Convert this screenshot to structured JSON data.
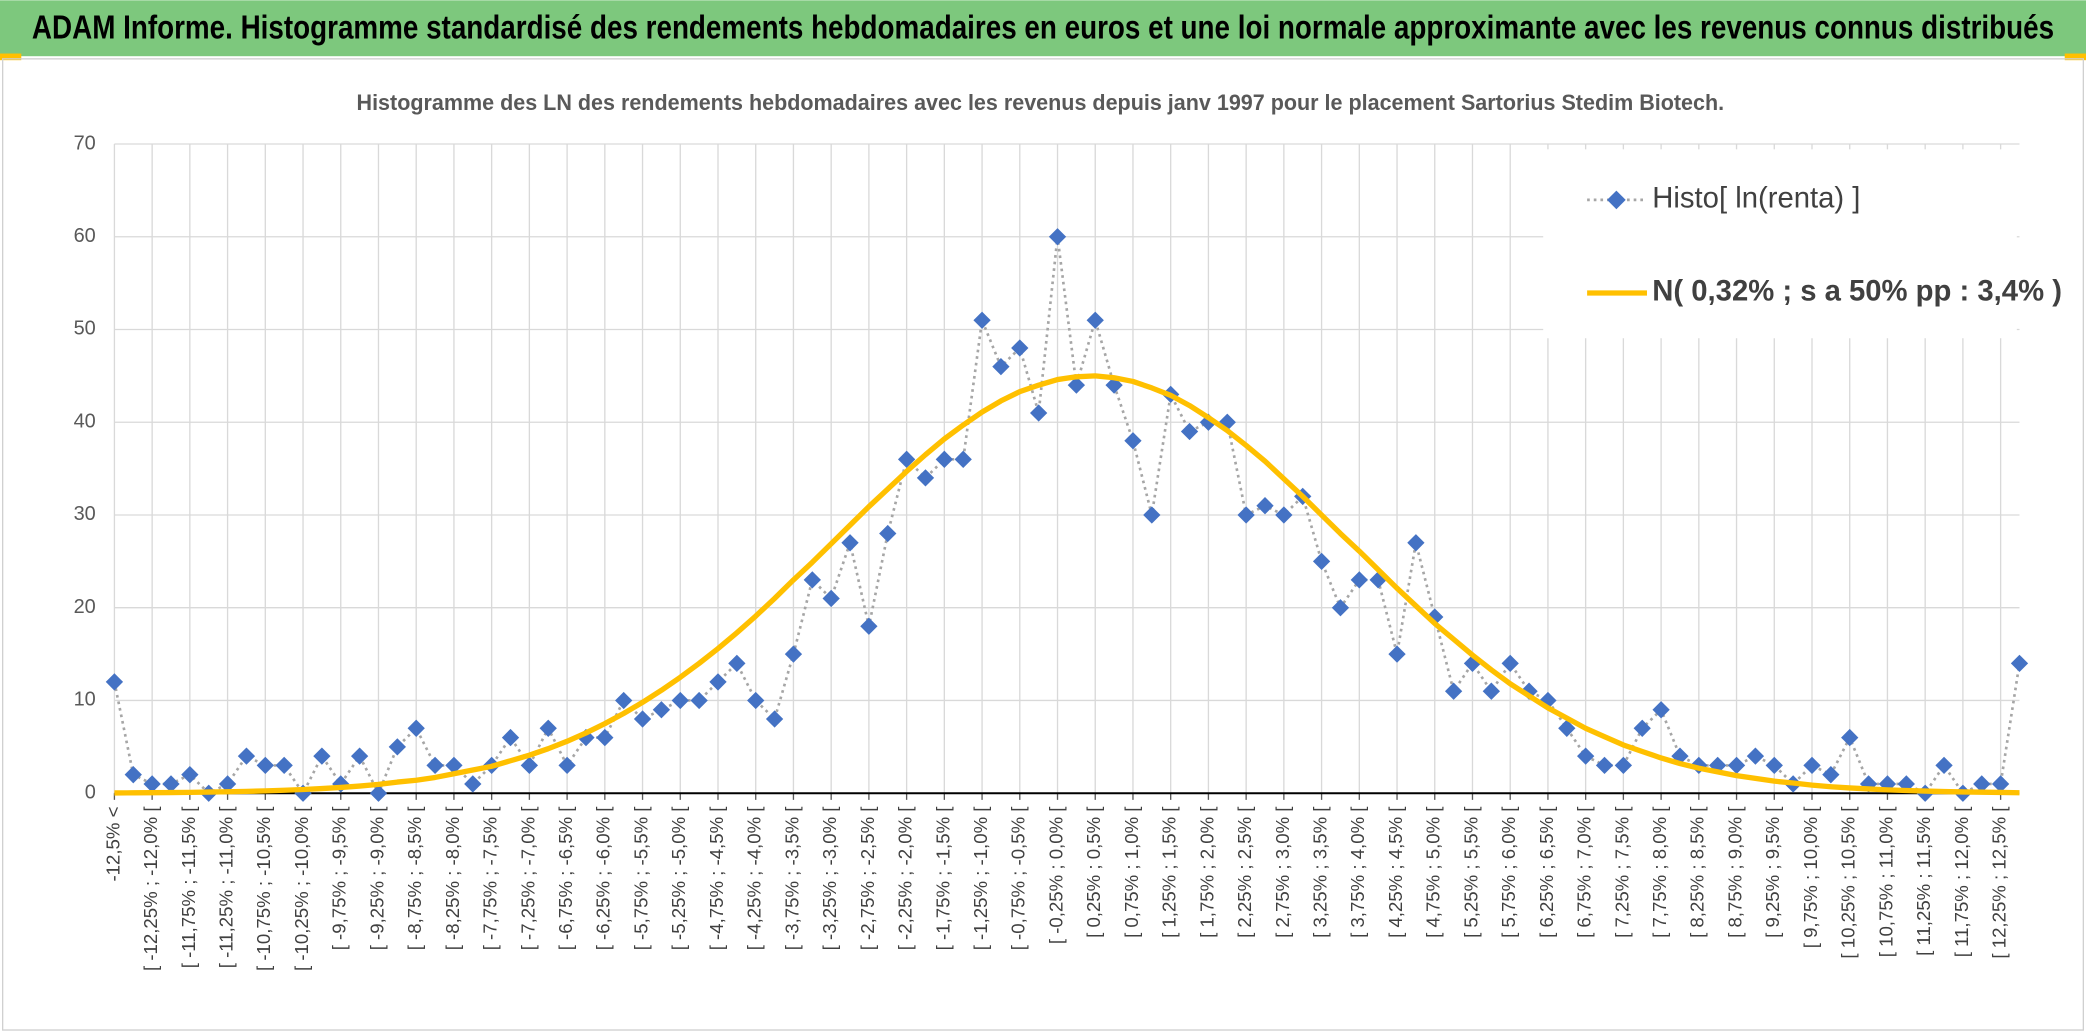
{
  "header": {
    "title": "ADAM Informe. Histogramme standardisé des rendements hebdomadaires en euros et une loi normale approximante avec les revenus connus distribués"
  },
  "chart_data": {
    "type": "line",
    "title": "Histogramme des LN des rendements hebdomadaires avec les revenus depuis janv 1997 pour le placement Sartorius Stedim Biotech.",
    "categories": [
      "-12,5% <",
      null,
      "[ -12,25% ; -12,0% [",
      null,
      "[ -11,75% ; -11,5% [",
      null,
      "[ -11,25% ; -11,0% [",
      null,
      "[ -10,75% ; -10,5% [",
      null,
      "[ -10,25% ; -10,0% [",
      null,
      "[ -9,75% ; -9,5% [",
      null,
      "[ -9,25% ; -9,0% [",
      null,
      "[ -8,75% ; -8,5% [",
      null,
      "[ -8,25% ; -8,0% [",
      null,
      "[ -7,75% ; -7,5% [",
      null,
      "[ -7,25% ; -7,0% [",
      null,
      "[ -6,75% ; -6,5% [",
      null,
      "[ -6,25% ; -6,0% [",
      null,
      "[ -5,75% ; -5,5% [",
      null,
      "[ -5,25% ; -5,0% [",
      null,
      "[ -4,75% ; -4,5% [",
      null,
      "[ -4,25% ; -4,0% [",
      null,
      "[ -3,75% ; -3,5% [",
      null,
      "[ -3,25% ; -3,0% [",
      null,
      "[ -2,75% ; -2,5% [",
      null,
      "[ -2,25% ; -2,0% [",
      null,
      "[ -1,75% ; -1,5% [",
      null,
      "[ -1,25% ; -1,0% [",
      null,
      "[ -0,75% ; -0,5% [",
      null,
      "[ -0,25% ; 0,0% [",
      null,
      "[ 0,25% ; 0,5% [",
      null,
      "[ 0,75% ; 1,0% [",
      null,
      "[ 1,25% ; 1,5% [",
      null,
      "[ 1,75% ; 2,0% [",
      null,
      "[ 2,25% ; 2,5% [",
      null,
      "[ 2,75% ; 3,0% [",
      null,
      "[ 3,25% ; 3,5% [",
      null,
      "[ 3,75% ; 4,0% [",
      null,
      "[ 4,25% ; 4,5% [",
      null,
      "[ 4,75% ; 5,0% [",
      null,
      "[ 5,25% ; 5,5% [",
      null,
      "[ 5,75% ; 6,0% [",
      null,
      "[ 6,25% ; 6,5% [",
      null,
      "[ 6,75% ; 7,0% [",
      null,
      "[ 7,25% ; 7,5% [",
      null,
      "[ 7,75% ; 8,0% [",
      null,
      "[ 8,25% ; 8,5% [",
      null,
      "[ 8,75% ; 9,0% [",
      null,
      "[ 9,25% ; 9,5% [",
      null,
      "[ 9,75% ; 10,0% [",
      null,
      "[ 10,25% ; 10,5% [",
      null,
      "[ 10,75% ; 11,0% [",
      null,
      "[ 11,25% ; 11,5% [",
      null,
      "[ 11,75% ; 12,0% [",
      null,
      "[ 12,25% ; 12,5% [",
      null
    ],
    "series": [
      {
        "name": "Histo[ ln(renta) ]",
        "color": "#4472c4",
        "line_color": "#a6a6a6",
        "line_style": "dotted",
        "marker": "diamond",
        "values": [
          12,
          2,
          1,
          1,
          2,
          0,
          1,
          4,
          3,
          3,
          0,
          4,
          1,
          4,
          0,
          5,
          7,
          3,
          3,
          1,
          3,
          6,
          3,
          7,
          3,
          6,
          6,
          10,
          8,
          9,
          10,
          10,
          12,
          14,
          10,
          8,
          15,
          23,
          21,
          27,
          18,
          28,
          36,
          34,
          36,
          36,
          51,
          46,
          48,
          41,
          60,
          44,
          51,
          44,
          38,
          30,
          43,
          39,
          40,
          40,
          30,
          31,
          30,
          32,
          25,
          20,
          23,
          23,
          15,
          27,
          19,
          11,
          14,
          11,
          14,
          11,
          10,
          7,
          4,
          3,
          3,
          7,
          9,
          4,
          3,
          3,
          3,
          4,
          3,
          1,
          3,
          2,
          6,
          1,
          1,
          1,
          0,
          3,
          0,
          1,
          1,
          14
        ]
      },
      {
        "name": "N( 0,32% ; s a 50% pp : 3,4% )",
        "color": "#ffc000",
        "line_style": "solid",
        "values": [
          0.03,
          0.04,
          0.06,
          0.07,
          0.09,
          0.12,
          0.16,
          0.2,
          0.25,
          0.32,
          0.4,
          0.5,
          0.62,
          0.77,
          0.95,
          1.2,
          1.4,
          1.7,
          2.1,
          2.5,
          2.9,
          3.5,
          4.1,
          4.8,
          5.6,
          6.5,
          7.5,
          8.6,
          9.8,
          11.1,
          12.5,
          14,
          15.6,
          17.3,
          19.1,
          21,
          23,
          24.9,
          26.9,
          28.9,
          30.9,
          32.8,
          34.7,
          36.5,
          38.2,
          39.7,
          41.1,
          42.3,
          43.3,
          44,
          44.6,
          44.9,
          45,
          44.8,
          44.4,
          43.7,
          42.9,
          41.8,
          40.5,
          39.1,
          37.5,
          35.8,
          33.9,
          32,
          30,
          28,
          26.1,
          24.1,
          22.1,
          20.2,
          18.3,
          16.6,
          14.9,
          13.3,
          11.8,
          10.5,
          9.2,
          8.1,
          7,
          6.1,
          5.2,
          4.5,
          3.8,
          3.2,
          2.7,
          2.3,
          1.9,
          1.6,
          1.3,
          1.1,
          0.87,
          0.7,
          0.57,
          0.46,
          0.36,
          0.29,
          0.23,
          0.18,
          0.14,
          0.11,
          0.08,
          0.05
        ]
      }
    ],
    "ylim": [
      0,
      70
    ],
    "yticks": [
      0,
      10,
      20,
      30,
      40,
      50,
      60,
      70
    ],
    "grid": true,
    "legend": "top-right"
  }
}
